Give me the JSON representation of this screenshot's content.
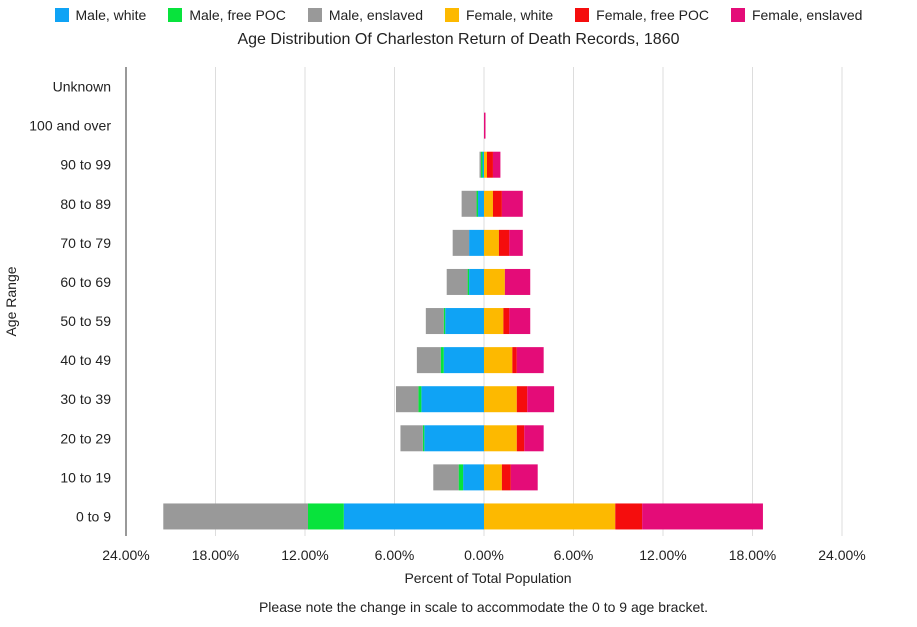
{
  "chart_data": {
    "type": "bar",
    "orientation": "horizontal-stacked-diverging",
    "title": "Age Distribution Of Charleston Return of Death Records, 1860",
    "xlabel": "Percent of Total Population",
    "ylabel": "Age Range",
    "note": "Please note the change in scale to accommodate the 0 to 9 age bracket.",
    "xlim": [
      -24,
      24
    ],
    "x_ticks": [
      -24,
      -18,
      -12,
      -6,
      0,
      6,
      12,
      18,
      24
    ],
    "x_tick_labels": [
      "24.00%",
      "18.00%",
      "12.00%",
      "6.00%",
      "0.00%",
      "6.00%",
      "12.00%",
      "18.00%",
      "24.00%"
    ],
    "grid": true,
    "legend_position": "top",
    "categories": [
      "0 to 9",
      "10 to 19",
      "20 to 29",
      "30 to 39",
      "40 to 49",
      "50 to 59",
      "60 to 69",
      "70 to 79",
      "80 to 89",
      "90 to 99",
      "100 and over",
      "Unknown"
    ],
    "series": [
      {
        "name": "Male, white",
        "color": "#0fa3f5",
        "side": "left",
        "values": [
          9.4,
          1.4,
          4.0,
          4.2,
          2.7,
          2.6,
          1.0,
          1.0,
          0.4,
          0.1,
          0.0,
          0.0
        ]
      },
      {
        "name": "Male, free POC",
        "color": "#08e33c",
        "side": "left",
        "values": [
          2.4,
          0.3,
          0.1,
          0.2,
          0.2,
          0.1,
          0.1,
          0.0,
          0.1,
          0.1,
          0.0,
          0.0
        ]
      },
      {
        "name": "Male, enslaved",
        "color": "#999999",
        "side": "left",
        "values": [
          9.7,
          1.7,
          1.5,
          1.5,
          1.6,
          1.2,
          1.4,
          1.1,
          1.0,
          0.1,
          0.0,
          0.0
        ]
      },
      {
        "name": "Female, white",
        "color": "#fdb900",
        "side": "right",
        "values": [
          8.8,
          1.2,
          2.2,
          2.2,
          1.9,
          1.3,
          1.4,
          1.0,
          0.6,
          0.2,
          0.0,
          0.0
        ]
      },
      {
        "name": "Female, free POC",
        "color": "#f50d0d",
        "side": "right",
        "values": [
          1.8,
          0.6,
          0.5,
          0.7,
          0.3,
          0.4,
          0.0,
          0.7,
          0.6,
          0.4,
          0.0,
          0.0
        ]
      },
      {
        "name": "Female, enslaved",
        "color": "#e40c78",
        "side": "right",
        "values": [
          8.1,
          1.8,
          1.3,
          1.8,
          1.8,
          1.4,
          1.7,
          0.9,
          1.4,
          0.5,
          0.1,
          0.0
        ]
      }
    ]
  }
}
